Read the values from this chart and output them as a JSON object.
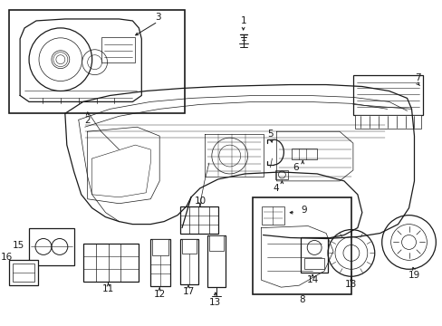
{
  "bg": "#ffffff",
  "lc": "#1a1a1a",
  "fig_w": 4.89,
  "fig_h": 3.6,
  "dpi": 100
}
